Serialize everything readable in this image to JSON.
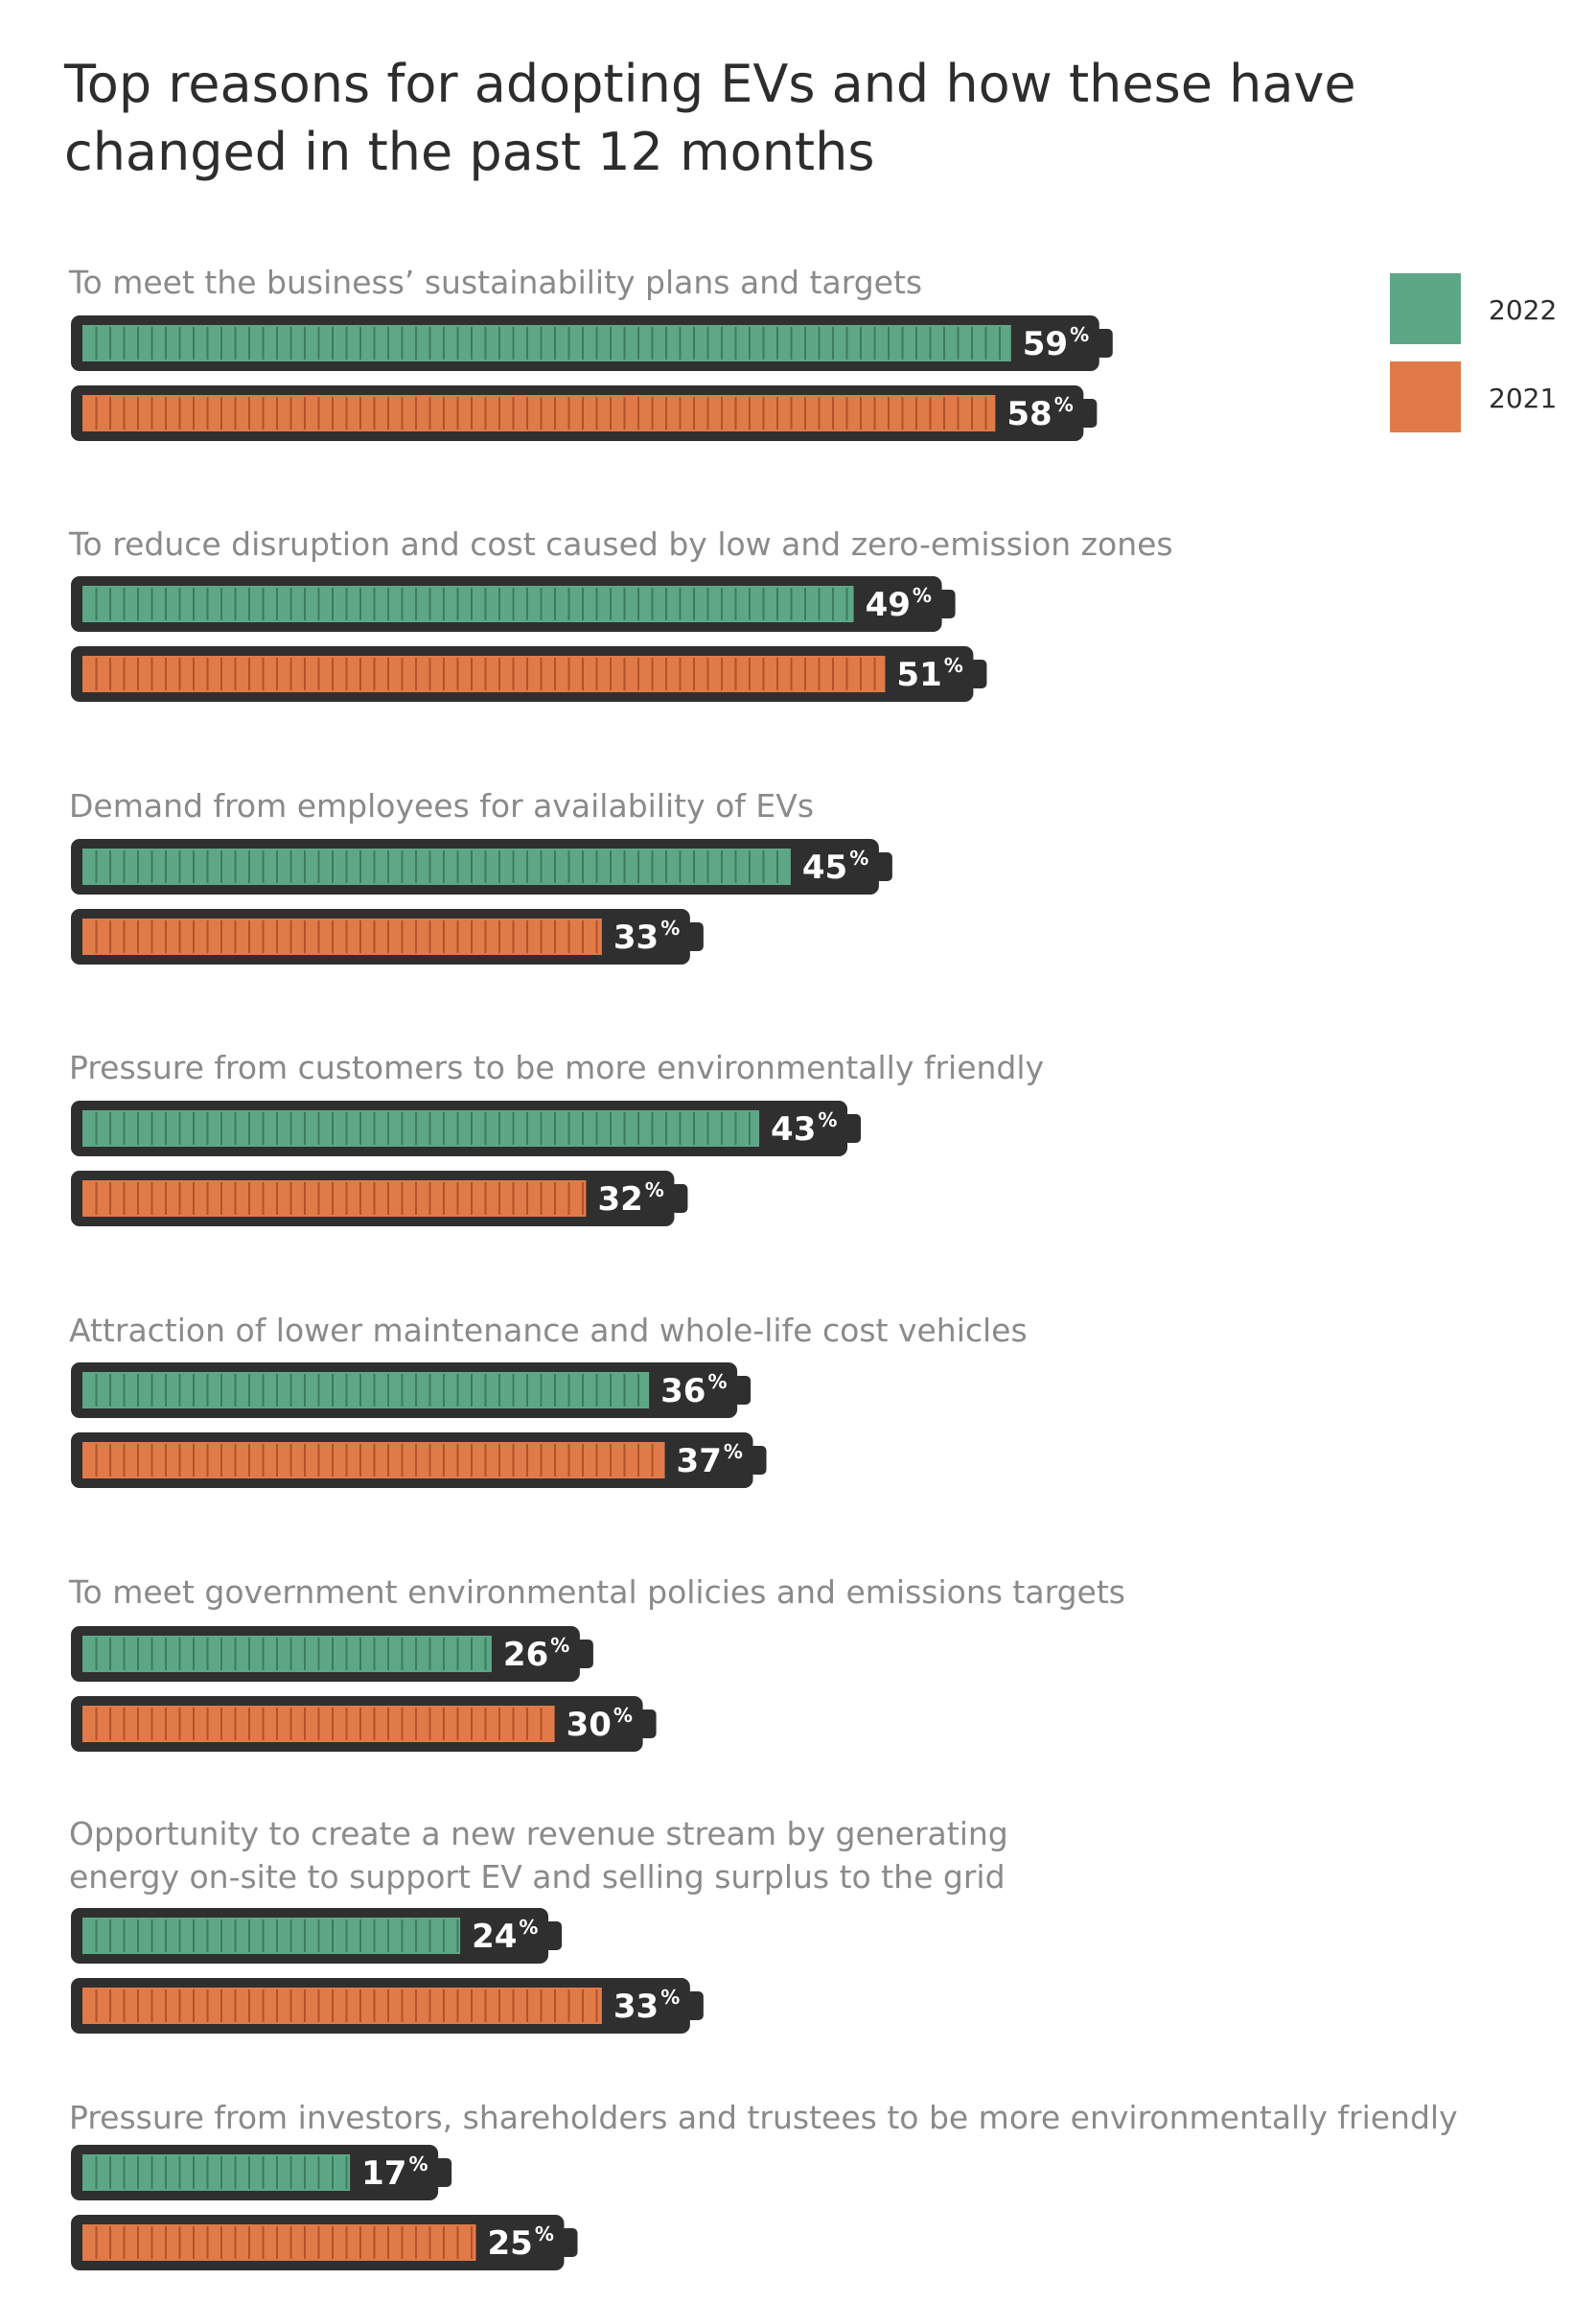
{
  "chart_data": {
    "type": "bar",
    "orientation": "horizontal",
    "title_lines": [
      "Top reasons for adopting EVs and how these have",
      "changed in the past 12 months"
    ],
    "unit": "%",
    "legend_placement": "top-right",
    "series": [
      {
        "name": "2022",
        "color": "#5da787"
      },
      {
        "name": "2021",
        "color": "#e07a48"
      }
    ],
    "categories": [
      {
        "label_lines": [
          "To meet the business’ sustainability plans and targets"
        ],
        "values": [
          59,
          58
        ]
      },
      {
        "label_lines": [
          "To reduce disruption and cost caused by low and zero-emission zones"
        ],
        "values": [
          49,
          51
        ]
      },
      {
        "label_lines": [
          "Demand from employees for availability of EVs"
        ],
        "values": [
          45,
          33
        ]
      },
      {
        "label_lines": [
          "Pressure from customers to be more environmentally friendly"
        ],
        "values": [
          43,
          32
        ]
      },
      {
        "label_lines": [
          "Attraction of lower maintenance and whole-life cost vehicles"
        ],
        "values": [
          36,
          37
        ]
      },
      {
        "label_lines": [
          "To meet government environmental policies and emissions targets"
        ],
        "values": [
          26,
          30
        ]
      },
      {
        "label_lines": [
          "Opportunity to create a new revenue stream by generating",
          "energy on-site to support EV and selling surplus to the grid"
        ],
        "values": [
          24,
          33
        ]
      },
      {
        "label_lines": [
          "Pressure from investors, shareholders and trustees to be more environmentally friendly"
        ],
        "values": [
          17,
          25
        ]
      }
    ]
  }
}
